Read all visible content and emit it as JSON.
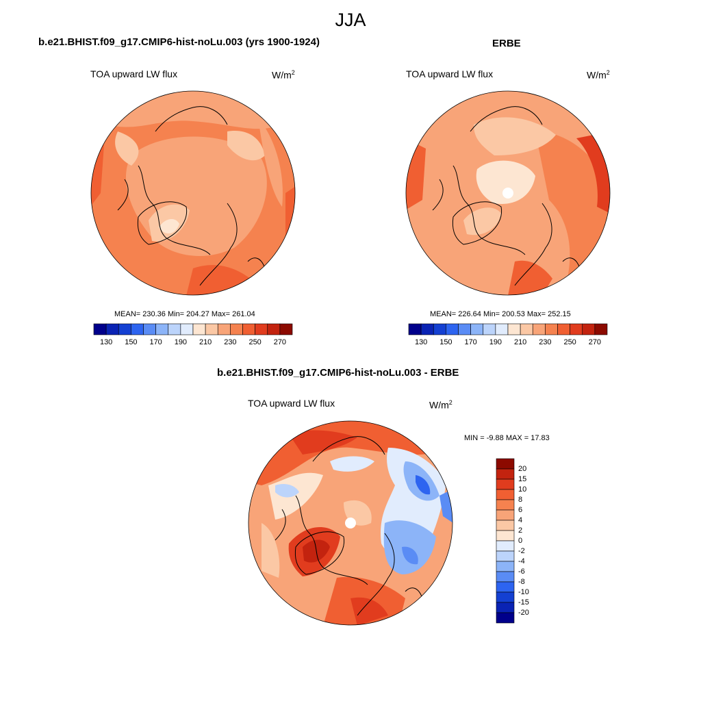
{
  "title": "JJA",
  "panels": [
    {
      "title": "b.e21.BHIST.f09_g17.CMIP6-hist-noLu.003 (yrs 1900-1924)",
      "variable": "TOA upward LW flux",
      "unit_base": "W/m",
      "unit_exp": "2",
      "stats": "MEAN= 230.36  Min= 204.27  Max= 261.04"
    },
    {
      "title": "ERBE",
      "variable": "TOA upward LW flux",
      "unit_base": "W/m",
      "unit_exp": "2",
      "stats": "MEAN= 226.64  Min= 200.53  Max= 252.15"
    },
    {
      "title": "b.e21.BHIST.f09_g17.CMIP6-hist-noLu.003 - ERBE",
      "variable": "TOA upward LW flux",
      "unit_base": "W/m",
      "unit_exp": "2",
      "stats": "MIN =  -9.88 MAX =  17.83"
    }
  ],
  "colorbar_abs": {
    "labels": [
      "130",
      "150",
      "170",
      "190",
      "210",
      "230",
      "250",
      "270"
    ],
    "colors": [
      "#00008b",
      "#0a23b4",
      "#1440d2",
      "#2d64f0",
      "#5a8cf5",
      "#8cb4f8",
      "#bcd4fb",
      "#e1ecfd",
      "#fde6d2",
      "#fbc8a5",
      "#f8a478",
      "#f5824f",
      "#f05f32",
      "#e13c1e",
      "#c3230f",
      "#8c0a00"
    ]
  },
  "colorbar_diff": {
    "labels": [
      "20",
      "15",
      "10",
      "8",
      "6",
      "4",
      "2",
      "0",
      "-2",
      "-4",
      "-6",
      "-8",
      "-10",
      "-15",
      "-20"
    ],
    "colors": [
      "#8c0a00",
      "#c3230f",
      "#e13c1e",
      "#f05f32",
      "#f5824f",
      "#f8a478",
      "#fbc8a5",
      "#fde6d2",
      "#e1ecfd",
      "#bcd4fb",
      "#8cb4f8",
      "#5a8cf5",
      "#2d64f0",
      "#1440d2",
      "#0a23b4",
      "#00008b"
    ]
  }
}
